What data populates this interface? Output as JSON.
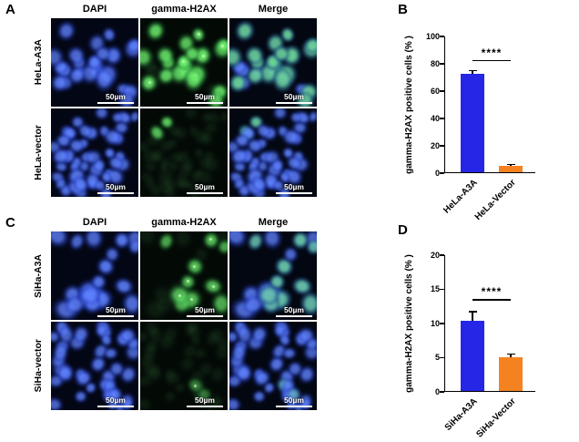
{
  "figure": {
    "scalebar": "50µm",
    "panels": {
      "A": {
        "label": "A",
        "col_headers": [
          "DAPI",
          "gamma-H2AX",
          "Merge"
        ],
        "row_labels": [
          "HeLa-A3A",
          "HeLa-vector"
        ]
      },
      "B": {
        "label": "B"
      },
      "C": {
        "label": "C",
        "col_headers": [
          "DAPI",
          "gamma-H2AX",
          "Merge"
        ],
        "row_labels": [
          "SiHa-A3A",
          "SiHa-vector"
        ]
      },
      "D": {
        "label": "D"
      }
    }
  },
  "chart_data": [
    {
      "type": "bar",
      "panel": "B",
      "ylabel": "gamma-H2AX positive cells (% )",
      "categories": [
        "HeLa-A3A",
        "HeLa-Vector"
      ],
      "values": [
        72,
        4.5
      ],
      "errors": [
        2,
        0.8
      ],
      "bar_colors": [
        "#2626e6",
        "#f58220"
      ],
      "ylim": [
        0,
        100
      ],
      "yticks": [
        0,
        20,
        40,
        60,
        80,
        100
      ],
      "significance": "****",
      "grid": false,
      "legend": false
    },
    {
      "type": "bar",
      "panel": "D",
      "ylabel": "gamma-H2AX positive cells (% )",
      "categories": [
        "SiHa-A3A",
        "SiHa-Vector"
      ],
      "values": [
        10.3,
        5.0
      ],
      "errors": [
        1.2,
        0.3
      ],
      "bar_colors": [
        "#2626e6",
        "#f58220"
      ],
      "ylim": [
        0,
        20
      ],
      "yticks": [
        0,
        5,
        10,
        15,
        20
      ],
      "significance": "****",
      "grid": false,
      "legend": false
    }
  ]
}
